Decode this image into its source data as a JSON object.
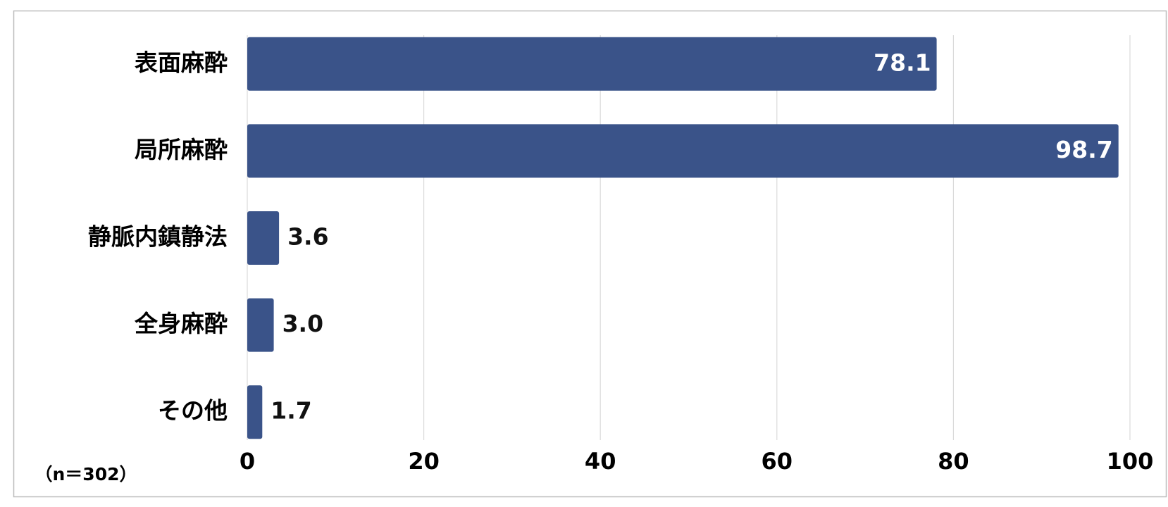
{
  "chart_data": {
    "type": "bar",
    "orientation": "horizontal",
    "categories": [
      "表面麻酔",
      "局所麻酔",
      "静脈内鎮静法",
      "全身麻酔",
      "その他"
    ],
    "values": [
      78.1,
      98.7,
      3.6,
      3.0,
      1.7
    ],
    "value_labels": [
      "78.1",
      "98.7",
      "3.6",
      "3.0",
      "1.7"
    ],
    "color": "#3a5389",
    "xlim": [
      0,
      100
    ],
    "xticks": [
      0,
      20,
      40,
      60,
      80,
      100
    ],
    "grid": true,
    "note": "（n＝302）"
  }
}
